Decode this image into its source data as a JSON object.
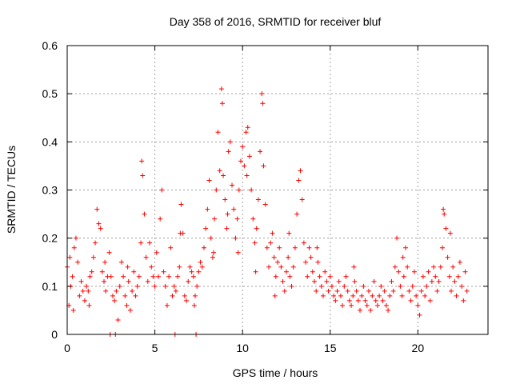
{
  "chart_data": {
    "type": "scatter",
    "title": "Day 358 of 2016, SRMTID for receiver bluf",
    "xlabel": "GPS time / hours",
    "ylabel": "SRMTID / TECUs",
    "xlim": [
      0,
      24
    ],
    "ylim": [
      0,
      0.6
    ],
    "grid": true,
    "marker": "+",
    "xticks": [
      0,
      5,
      10,
      15,
      20
    ],
    "xtick_labels": [
      "0",
      "5",
      "10",
      "15",
      "20"
    ],
    "yticks": [
      0,
      0.1,
      0.2,
      0.3,
      0.4,
      0.5,
      0.6
    ],
    "ytick_labels": [
      "0",
      "0.1",
      "0.2",
      "0.3",
      "0.4",
      "0.5",
      "0.6"
    ],
    "series": [
      {
        "name": "SRMTID",
        "color": "#ff0000",
        "points": [
          [
            0.0,
            0.14
          ],
          [
            0.1,
            0.06
          ],
          [
            0.2,
            0.1
          ],
          [
            0.3,
            0.12
          ],
          [
            0.4,
            0.18
          ],
          [
            0.5,
            0.2
          ],
          [
            0.6,
            0.15
          ],
          [
            0.7,
            0.08
          ],
          [
            0.8,
            0.11
          ],
          [
            0.9,
            0.09
          ],
          [
            1.0,
            0.07
          ],
          [
            1.1,
            0.1
          ],
          [
            1.2,
            0.09
          ],
          [
            1.3,
            0.12
          ],
          [
            1.4,
            0.13
          ],
          [
            1.5,
            0.16
          ],
          [
            1.6,
            0.19
          ],
          [
            1.7,
            0.26
          ],
          [
            1.8,
            0.23
          ],
          [
            1.9,
            0.22
          ],
          [
            2.0,
            0.13
          ],
          [
            2.1,
            0.11
          ],
          [
            2.2,
            0.09
          ],
          [
            2.3,
            0.12
          ],
          [
            2.4,
            0.17
          ],
          [
            2.5,
            0.12
          ],
          [
            2.6,
            0.08
          ],
          [
            2.7,
            0.07
          ],
          [
            2.8,
            0.09
          ],
          [
            2.9,
            0.03
          ],
          [
            3.0,
            0.1
          ],
          [
            3.1,
            0.15
          ],
          [
            3.2,
            0.12
          ],
          [
            3.3,
            0.08
          ],
          [
            3.4,
            0.06
          ],
          [
            3.5,
            0.11
          ],
          [
            3.6,
            0.05
          ],
          [
            3.7,
            0.09
          ],
          [
            3.8,
            0.13
          ],
          [
            3.9,
            0.08
          ],
          [
            4.0,
            0.1
          ],
          [
            4.1,
            0.12
          ],
          [
            4.2,
            0.19
          ],
          [
            4.25,
            0.36
          ],
          [
            4.3,
            0.33
          ],
          [
            4.4,
            0.25
          ],
          [
            4.5,
            0.16
          ],
          [
            4.6,
            0.11
          ],
          [
            4.7,
            0.19
          ],
          [
            4.8,
            0.14
          ],
          [
            4.9,
            0.12
          ],
          [
            5.0,
            0.1
          ],
          [
            5.1,
            0.17
          ],
          [
            5.2,
            0.12
          ],
          [
            5.3,
            0.24
          ],
          [
            5.4,
            0.3
          ],
          [
            5.5,
            0.13
          ],
          [
            5.6,
            0.1
          ],
          [
            5.7,
            0.06
          ],
          [
            5.8,
            0.12
          ],
          [
            5.9,
            0.18
          ],
          [
            6.0,
            0.08
          ],
          [
            6.1,
            0.1
          ],
          [
            6.2,
            0.09
          ],
          [
            6.3,
            0.12
          ],
          [
            6.4,
            0.14
          ],
          [
            6.5,
            0.27
          ],
          [
            6.6,
            0.21
          ],
          [
            6.7,
            0.08
          ],
          [
            6.8,
            0.07
          ],
          [
            6.9,
            0.11
          ],
          [
            7.0,
            0.14
          ],
          [
            7.1,
            0.13
          ],
          [
            7.2,
            0.12
          ],
          [
            7.3,
            0.08
          ],
          [
            7.4,
            0.1
          ],
          [
            7.5,
            0.13
          ],
          [
            7.6,
            0.15
          ],
          [
            7.7,
            0.14
          ],
          [
            7.8,
            0.18
          ],
          [
            7.9,
            0.22
          ],
          [
            8.0,
            0.26
          ],
          [
            8.1,
            0.32
          ],
          [
            8.2,
            0.2
          ],
          [
            8.3,
            0.16
          ],
          [
            8.4,
            0.24
          ],
          [
            8.5,
            0.3
          ],
          [
            8.6,
            0.42
          ],
          [
            8.7,
            0.34
          ],
          [
            8.8,
            0.51
          ],
          [
            8.85,
            0.48
          ],
          [
            8.9,
            0.33
          ],
          [
            9.0,
            0.28
          ],
          [
            9.1,
            0.22
          ],
          [
            9.2,
            0.38
          ],
          [
            9.3,
            0.4
          ],
          [
            9.4,
            0.31
          ],
          [
            9.5,
            0.26
          ],
          [
            9.6,
            0.2
          ],
          [
            9.7,
            0.24
          ],
          [
            9.8,
            0.3
          ],
          [
            9.9,
            0.36
          ],
          [
            10.0,
            0.39
          ],
          [
            10.1,
            0.35
          ],
          [
            10.2,
            0.42
          ],
          [
            10.3,
            0.43
          ],
          [
            10.4,
            0.37
          ],
          [
            10.5,
            0.3
          ],
          [
            10.6,
            0.24
          ],
          [
            10.7,
            0.19
          ],
          [
            10.8,
            0.22
          ],
          [
            10.9,
            0.28
          ],
          [
            11.0,
            0.38
          ],
          [
            11.1,
            0.5
          ],
          [
            11.15,
            0.48
          ],
          [
            11.2,
            0.35
          ],
          [
            11.3,
            0.27
          ],
          [
            11.4,
            0.18
          ],
          [
            11.5,
            0.14
          ],
          [
            11.6,
            0.19
          ],
          [
            11.7,
            0.21
          ],
          [
            11.8,
            0.16
          ],
          [
            11.9,
            0.12
          ],
          [
            12.0,
            0.15
          ],
          [
            12.1,
            0.18
          ],
          [
            12.2,
            0.14
          ],
          [
            12.3,
            0.11
          ],
          [
            12.4,
            0.09
          ],
          [
            12.5,
            0.13
          ],
          [
            12.6,
            0.16
          ],
          [
            12.7,
            0.12
          ],
          [
            12.8,
            0.1
          ],
          [
            12.9,
            0.14
          ],
          [
            13.0,
            0.18
          ],
          [
            13.1,
            0.25
          ],
          [
            13.2,
            0.32
          ],
          [
            13.3,
            0.34
          ],
          [
            13.4,
            0.28
          ],
          [
            13.5,
            0.19
          ],
          [
            13.6,
            0.15
          ],
          [
            13.7,
            0.12
          ],
          [
            13.8,
            0.18
          ],
          [
            13.9,
            0.16
          ],
          [
            14.0,
            0.13
          ],
          [
            14.1,
            0.11
          ],
          [
            14.2,
            0.09
          ],
          [
            14.3,
            0.15
          ],
          [
            14.4,
            0.12
          ],
          [
            14.5,
            0.1
          ],
          [
            14.6,
            0.08
          ],
          [
            14.7,
            0.13
          ],
          [
            14.8,
            0.11
          ],
          [
            14.9,
            0.09
          ],
          [
            15.0,
            0.12
          ],
          [
            15.1,
            0.1
          ],
          [
            15.2,
            0.08
          ],
          [
            15.3,
            0.07
          ],
          [
            15.4,
            0.09
          ],
          [
            15.5,
            0.11
          ],
          [
            15.6,
            0.08
          ],
          [
            15.7,
            0.06
          ],
          [
            15.8,
            0.1
          ],
          [
            15.9,
            0.12
          ],
          [
            16.0,
            0.09
          ],
          [
            16.1,
            0.07
          ],
          [
            16.2,
            0.06
          ],
          [
            16.3,
            0.08
          ],
          [
            16.4,
            0.11
          ],
          [
            16.5,
            0.09
          ],
          [
            16.6,
            0.07
          ],
          [
            16.7,
            0.05
          ],
          [
            16.8,
            0.08
          ],
          [
            16.9,
            0.1
          ],
          [
            17.0,
            0.07
          ],
          [
            17.1,
            0.06
          ],
          [
            17.2,
            0.09
          ],
          [
            17.3,
            0.05
          ],
          [
            17.4,
            0.08
          ],
          [
            17.5,
            0.11
          ],
          [
            17.6,
            0.07
          ],
          [
            17.7,
            0.06
          ],
          [
            17.8,
            0.08
          ],
          [
            17.9,
            0.1
          ],
          [
            18.0,
            0.07
          ],
          [
            18.1,
            0.09
          ],
          [
            18.2,
            0.06
          ],
          [
            18.3,
            0.05
          ],
          [
            18.4,
            0.08
          ],
          [
            18.5,
            0.11
          ],
          [
            18.6,
            0.09
          ],
          [
            18.7,
            0.14
          ],
          [
            18.8,
            0.2
          ],
          [
            18.9,
            0.13
          ],
          [
            19.0,
            0.1
          ],
          [
            19.1,
            0.08
          ],
          [
            19.2,
            0.12
          ],
          [
            19.3,
            0.18
          ],
          [
            19.4,
            0.14
          ],
          [
            19.5,
            0.09
          ],
          [
            19.6,
            0.07
          ],
          [
            19.7,
            0.1
          ],
          [
            19.8,
            0.13
          ],
          [
            19.9,
            0.08
          ],
          [
            20.0,
            0.06
          ],
          [
            20.1,
            0.04
          ],
          [
            20.2,
            0.09
          ],
          [
            20.3,
            0.12
          ],
          [
            20.4,
            0.08
          ],
          [
            20.5,
            0.1
          ],
          [
            20.6,
            0.13
          ],
          [
            20.7,
            0.07
          ],
          [
            20.8,
            0.11
          ],
          [
            20.9,
            0.14
          ],
          [
            21.0,
            0.12
          ],
          [
            21.1,
            0.09
          ],
          [
            21.2,
            0.11
          ],
          [
            21.3,
            0.14
          ],
          [
            21.4,
            0.18
          ],
          [
            21.45,
            0.26
          ],
          [
            21.5,
            0.25
          ],
          [
            21.6,
            0.22
          ],
          [
            21.7,
            0.16
          ],
          [
            21.8,
            0.12
          ],
          [
            21.9,
            0.09
          ],
          [
            22.0,
            0.14
          ],
          [
            22.1,
            0.11
          ],
          [
            22.2,
            0.08
          ],
          [
            22.3,
            0.12
          ],
          [
            22.4,
            0.15
          ],
          [
            22.5,
            0.1
          ],
          [
            22.6,
            0.07
          ],
          [
            22.7,
            0.13
          ],
          [
            22.8,
            0.09
          ],
          [
            0.15,
            0.16
          ],
          [
            0.35,
            0.05
          ],
          [
            1.25,
            0.06
          ],
          [
            2.15,
            0.15
          ],
          [
            3.45,
            0.14
          ],
          [
            6.45,
            0.21
          ],
          [
            7.25,
            0.06
          ],
          [
            8.35,
            0.17
          ],
          [
            9.15,
            0.25
          ],
          [
            9.75,
            0.17
          ],
          [
            10.25,
            0.33
          ],
          [
            10.75,
            0.13
          ],
          [
            11.85,
            0.08
          ],
          [
            12.65,
            0.21
          ],
          [
            14.25,
            0.18
          ],
          [
            16.35,
            0.14
          ],
          [
            19.15,
            0.16
          ],
          [
            21.85,
            0.21
          ],
          [
            2.45,
            0.0
          ],
          [
            2.75,
            0.0
          ],
          [
            6.15,
            0.0
          ],
          [
            7.35,
            0.0
          ]
        ]
      }
    ]
  }
}
